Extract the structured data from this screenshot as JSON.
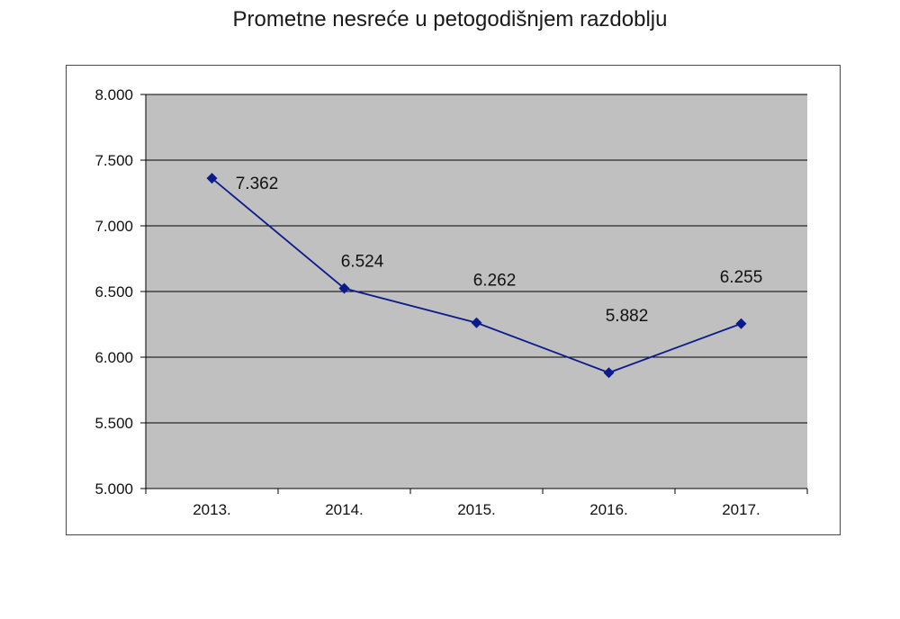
{
  "chart_data": {
    "type": "line",
    "title": "Prometne nesreće u petogodišnjem razdoblju",
    "categories": [
      "2013.",
      "2014.",
      "2015.",
      "2016.",
      "2017."
    ],
    "values": [
      7362,
      6524,
      6262,
      5882,
      6255
    ],
    "data_labels": [
      "7.362",
      "6.524",
      "6.262",
      "5.882",
      "6.255"
    ],
    "ylim": [
      5000,
      8000
    ],
    "yticks": [
      5000,
      5500,
      6000,
      6500,
      7000,
      7500,
      8000
    ],
    "ytick_labels": [
      "5.000",
      "5.500",
      "6.000",
      "6.500",
      "7.000",
      "7.500",
      "8.000"
    ],
    "xlabel": "",
    "ylabel": "",
    "grid": "horizontal",
    "legend": "none",
    "colors": {
      "line": "#0b1a8c",
      "marker": "#0b1a8c",
      "plot_background": "#c0c0c0",
      "gridline": "#000000"
    }
  }
}
